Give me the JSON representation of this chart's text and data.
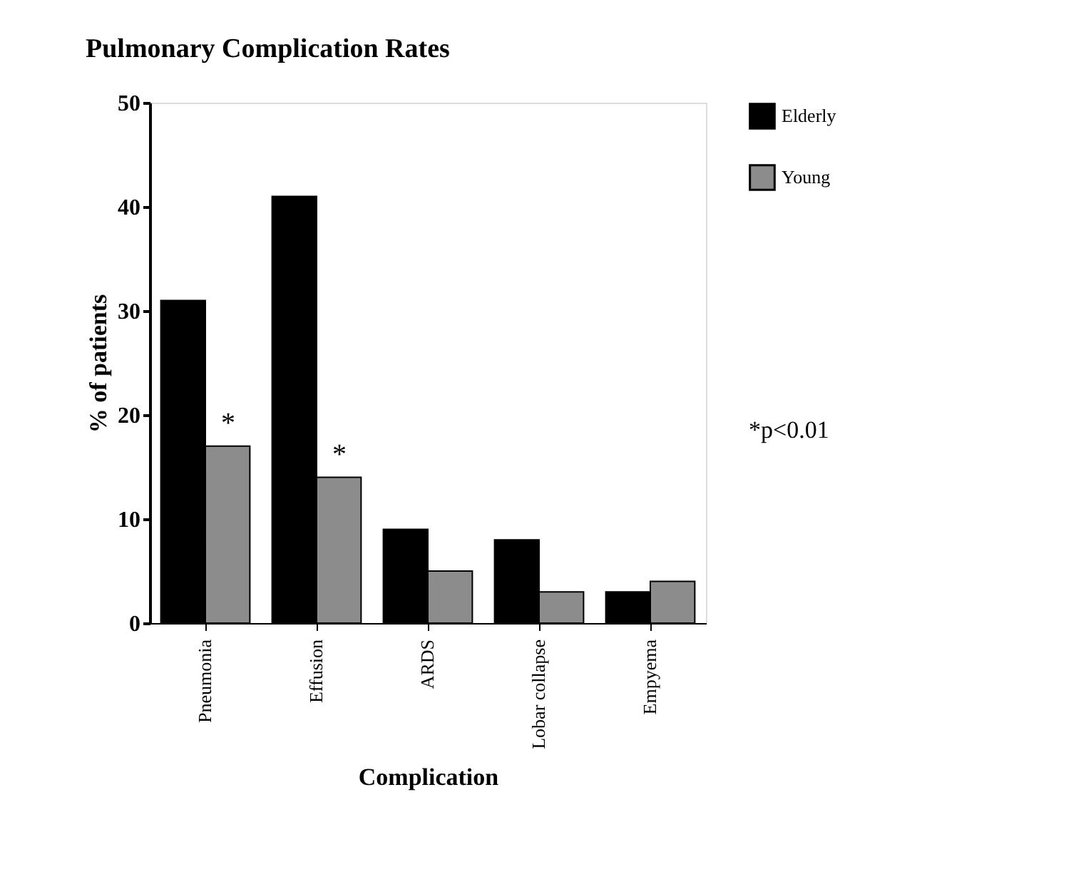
{
  "chart_data": {
    "type": "bar",
    "title": "Pulmonary Complication Rates",
    "xlabel": "Complication",
    "ylabel": "% of patients",
    "categories": [
      "Pneumonia",
      "Effusion",
      "ARDS",
      "Lobar collapse",
      "Empyema"
    ],
    "series": [
      {
        "name": "Elderly",
        "color": "#000000",
        "values": [
          31,
          41,
          9,
          8,
          3
        ]
      },
      {
        "name": "Young",
        "color": "#8c8c8c",
        "values": [
          17,
          14,
          5,
          3,
          4
        ]
      }
    ],
    "ylim": [
      0,
      50
    ],
    "yticks": [
      0,
      10,
      20,
      30,
      40,
      50
    ],
    "grid": false,
    "legend": "right",
    "annotations": [
      {
        "text": "*",
        "x": "Pneumonia",
        "y": 17
      },
      {
        "text": "*",
        "x": "Effusion",
        "y": 14
      },
      "*p<0.01"
    ]
  }
}
